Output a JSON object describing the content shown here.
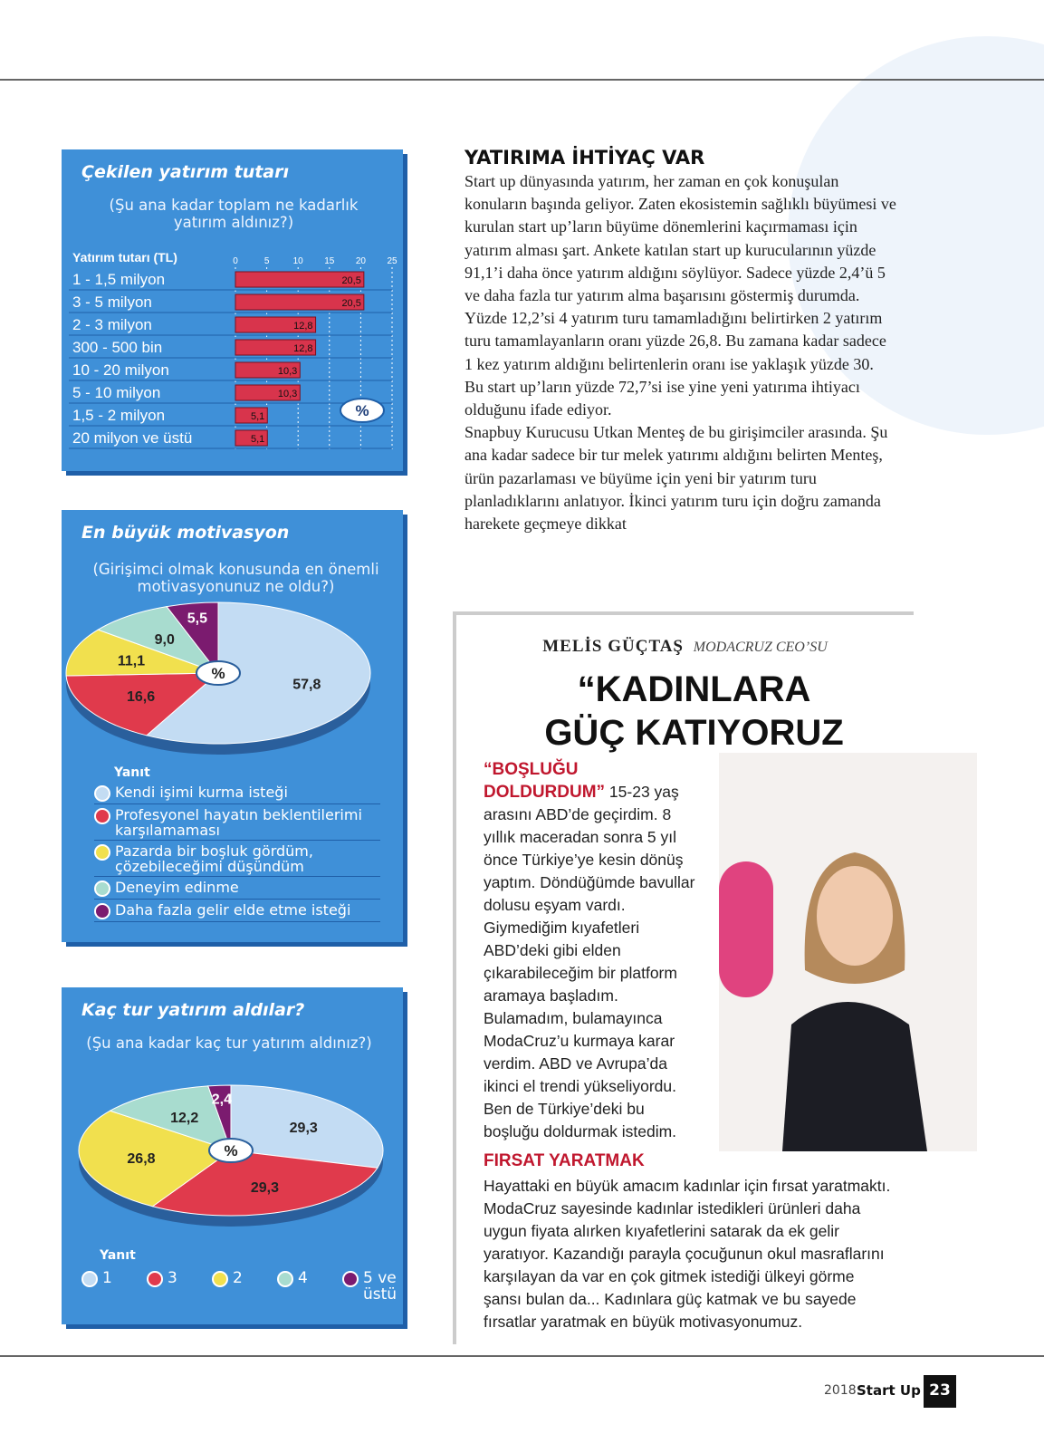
{
  "chart_data": [
    {
      "type": "bar",
      "title": "Çekilen yatırım tutarı",
      "subtitle": "(Şu ana kadar toplam ne kadarlık yatırım aldınız?)",
      "category_header": "Yatırım tutarı (TL)",
      "unit": "%",
      "categories": [
        "1 - 1,5 milyon",
        "3 - 5 milyon",
        "2 - 3 milyon",
        "300 - 500 bin",
        "10 - 20 milyon",
        "5 - 10 milyon",
        "1,5 - 2 milyon",
        "20 milyon ve üstü"
      ],
      "values": [
        20.5,
        20.5,
        12.8,
        12.8,
        10.3,
        10.3,
        5.1,
        5.1
      ],
      "value_labels": [
        "20,5",
        "20,5",
        "12,8",
        "12,8",
        "10,3",
        "10,3",
        "5,1",
        "5,1"
      ],
      "xlim": [
        0,
        25
      ],
      "xticks": [
        0,
        5,
        10,
        15,
        20,
        25
      ],
      "color": "#d8344c"
    },
    {
      "type": "pie",
      "title": "En büyük motivasyon",
      "subtitle": "(Girişimci olmak konusunda en önemli motivasyonunuz ne oldu?)",
      "unit": "%",
      "legend_title": "Yanıt",
      "categories": [
        "Kendi işimi kurma isteği",
        "Profesyonel hayatın beklentilerimi karşılamaması",
        "Pazarda bir boşluk gördüm, çözebileceğimi düşündüm",
        "Deneyim edinme",
        "Daha fazla gelir elde etme isteği"
      ],
      "values": [
        57.8,
        16.6,
        11.1,
        9.0,
        5.5
      ],
      "value_labels": [
        "57,8",
        "16,6",
        "11,1",
        "9,0",
        "5,5"
      ],
      "colors": [
        "#c3dcf3",
        "#e03a4c",
        "#f1e04e",
        "#a8dccf",
        "#7b1b6f"
      ]
    },
    {
      "type": "pie",
      "title": "Kaç tur yatırım aldılar?",
      "subtitle": "(Şu ana kadar kaç tur yatırım aldınız?)",
      "unit": "%",
      "legend_title": "Yanıt",
      "categories": [
        "1",
        "3",
        "2",
        "4",
        "5 ve üstü"
      ],
      "values": [
        29.3,
        29.3,
        26.8,
        12.2,
        2.4
      ],
      "value_labels": [
        "29,3",
        "29,3",
        "26,8",
        "12,2",
        "2,4"
      ],
      "colors": [
        "#c3dcf3",
        "#e03a4c",
        "#f1e04e",
        "#a8dccf",
        "#7b1b6f"
      ]
    }
  ],
  "article": {
    "heading": "YATIRIMA İHTİYAÇ VAR",
    "paragraphs": [
      "Start up dünyasında yatırım, her zaman en çok konuşulan konuların başında geliyor. Zaten ekosistemin sağlıklı büyümesi ve kurulan start up’ların büyüme dönemlerini kaçırmaması için yatırım alması şart. Ankete katılan start up kurucularının yüzde 91,1’i daha önce yatırım aldığını söylüyor. Sadece yüzde 2,4’ü 5 ve daha fazla tur yatırım alma başarısını göstermiş durumda. Yüzde 12,2’si 4 yatırım turu tamamladığını belirtirken 2 yatırım turu tamamlayanların oranı yüzde 26,8. Bu zamana kadar sadece 1 kez yatırım aldığını belirtenlerin oranı ise yaklaşık yüzde 30.",
      "Bu start up’ların yüzde 72,7’si ise yine yeni yatırıma ihtiyacı olduğunu ifade ediyor.",
      "Snapbuy Kurucusu Utkan Menteş de bu girişimciler arasında. Şu ana kadar sadece bir tur melek yatırımı aldığını belirten Menteş, ürün pazarlaması ve büyüme için yeni bir yatırım turu planladıklarını anlatıyor. İkinci yatırım turu için doğru zamanda harekete geçmeye dikkat"
    ]
  },
  "sidebar": {
    "name": "MELİS GÜÇTAŞ",
    "role": "MODACRUZ CEO’SU",
    "headline": "“KADINLARA GÜÇ KATIYORUZ",
    "lead": "“BOŞLUĞU DOLDURDUM”",
    "body": "15-23 yaş arasını ABD’de geçirdim. 8 yıllık maceradan sonra 5 yıl önce Türkiye’ye kesin dönüş yaptım. Döndüğümde bavullar dolusu eşyam vardı. Giymediğim kıyafetleri ABD’deki gibi elden çıkarabileceğim bir platform aramaya başladım. Bulamadım, bulamayınca ModaCruz’u kurmaya karar verdim. ABD ve Avrupa’da ikinci el trendi yükseliyordu. Ben de Türkiye’deki bu boşluğu doldurmak istedim.",
    "subheading": "FIRSAT YARATMAK",
    "body2": "Hayattaki en büyük amacım kadınlar için fırsat yaratmaktı. ModaCruz sayesinde kadınlar istedikleri ürünleri daha uygun fiyata alırken kıyafetlerini satarak da ek gelir yaratıyor. Kazandığı parayla çocuğunun okul masraflarını karşılayan da var en çok gitmek istediği ülkeyi görme şansı bulan da... Kadınlara güç katmak ve bu sayede fırsatlar yaratmak en büyük motivasyonumuz."
  },
  "footer": {
    "year": "2018",
    "magazine": "Start Up",
    "page": "23"
  }
}
